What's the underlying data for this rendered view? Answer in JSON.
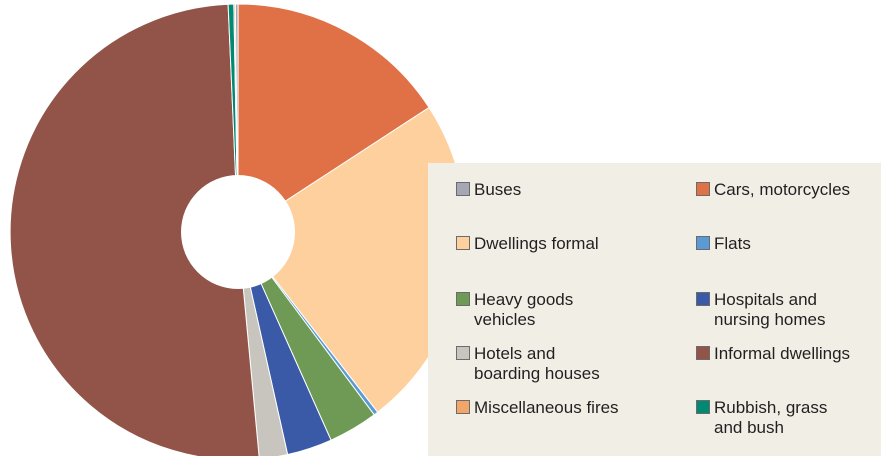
{
  "chart_data": {
    "type": "pie",
    "donut": true,
    "title": "",
    "legend_position": "right",
    "categories": [
      "Buses",
      "Cars, motorcycles",
      "Dwellings formal",
      "Flats",
      "Heavy goods vehicles",
      "Hospitals and nursing homes",
      "Hotels and boarding houses",
      "Informal dwellings",
      "Miscellaneous fires",
      "Rubbish, grass and bush"
    ],
    "legend_labels": [
      "Buses",
      "Cars, motorcycles",
      "Dwellings formal",
      "Flats",
      "Heavy goods\nvehicles",
      "Hospitals and\nnursing homes",
      "Hotels and\nboarding houses",
      "Informal dwellings",
      "Miscellaneous fires",
      "Rubbish, grass\nand bush"
    ],
    "values": [
      0.2,
      15.8,
      23.7,
      0.3,
      3.5,
      3.2,
      2.0,
      50.8,
      0.1,
      0.4
    ],
    "colors": [
      "#a5a8b4",
      "#e07045",
      "#fdd09e",
      "#5b9bd5",
      "#6e9a55",
      "#3a5aa8",
      "#c7c5bd",
      "#925449",
      "#f3a66a",
      "#008a73"
    ]
  }
}
